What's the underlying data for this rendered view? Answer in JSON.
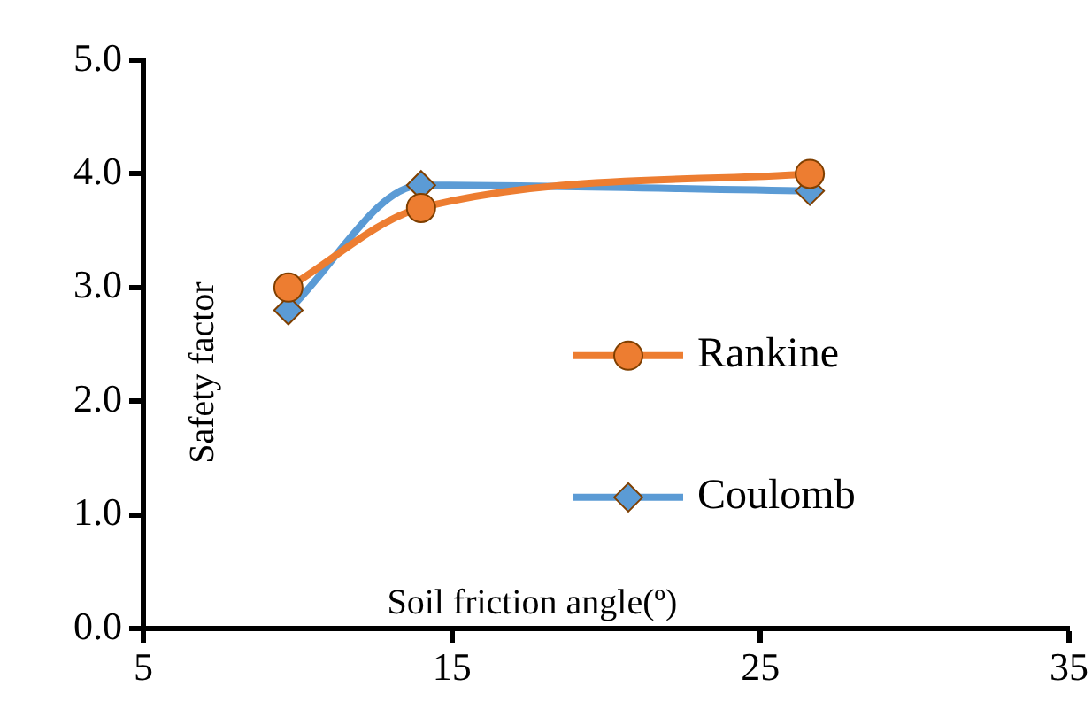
{
  "chart_data": {
    "type": "line",
    "xlabel": "Soil friction angle(º)",
    "ylabel": "Safety factor",
    "xlim": [
      5,
      35
    ],
    "xticks": [
      5,
      15,
      25,
      35
    ],
    "ylim": [
      0,
      5
    ],
    "yticks": [
      {
        "value": 0,
        "label": "0.0"
      },
      {
        "value": 1,
        "label": "1.0"
      },
      {
        "value": 2,
        "label": "2.0"
      },
      {
        "value": 3,
        "label": "3.0"
      },
      {
        "value": 4,
        "label": "4.0"
      },
      {
        "value": 5,
        "label": "5.0"
      }
    ],
    "legend": "right",
    "series": [
      {
        "name": "Rankine",
        "color": "#ed7d31",
        "marker": "circle",
        "x": [
          9.7,
          14,
          26.6
        ],
        "values": [
          3.0,
          3.7,
          4.0
        ]
      },
      {
        "name": "Coulomb",
        "color": "#5b9bd5",
        "marker": "diamond",
        "x": [
          9.7,
          14,
          26.6
        ],
        "values": [
          2.8,
          3.9,
          3.85
        ]
      }
    ]
  }
}
